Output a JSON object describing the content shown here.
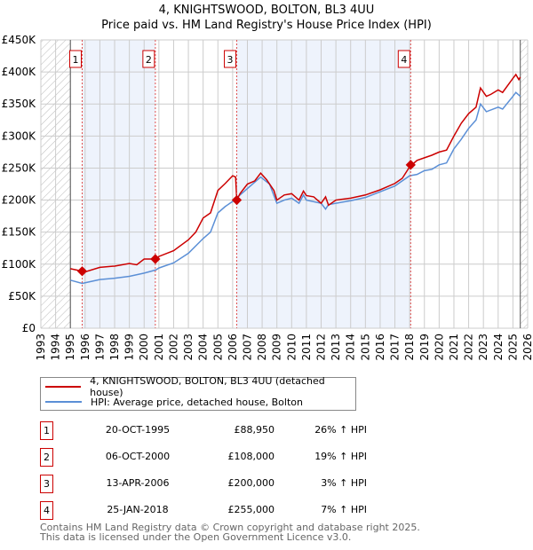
{
  "chart_data": {
    "type": "line",
    "title": "4, KNIGHTSWOOD, BOLTON, BL3 4UU",
    "subtitle": "Price paid vs. HM Land Registry's House Price Index (HPI)",
    "xlim": [
      1993,
      2026
    ],
    "ylim": [
      0,
      450000
    ],
    "x_ticks": [
      "1993",
      "1994",
      "1995",
      "1996",
      "1997",
      "1998",
      "1999",
      "2000",
      "2001",
      "2002",
      "2003",
      "2004",
      "2005",
      "2006",
      "2007",
      "2008",
      "2009",
      "2010",
      "2011",
      "2012",
      "2013",
      "2014",
      "2015",
      "2016",
      "2017",
      "2018",
      "2019",
      "2020",
      "2021",
      "2022",
      "2023",
      "2024",
      "2025",
      "2026"
    ],
    "y_ticks": [
      {
        "v": 0,
        "label": "£0"
      },
      {
        "v": 50000,
        "label": "£50K"
      },
      {
        "v": 100000,
        "label": "£100K"
      },
      {
        "v": 150000,
        "label": "£150K"
      },
      {
        "v": 200000,
        "label": "£200K"
      },
      {
        "v": 250000,
        "label": "£250K"
      },
      {
        "v": 300000,
        "label": "£300K"
      },
      {
        "v": 350000,
        "label": "£350K"
      },
      {
        "v": 400000,
        "label": "£400K"
      },
      {
        "v": 450000,
        "label": "£450K"
      }
    ],
    "grid": true,
    "data_range": [
      1995,
      2025.5
    ],
    "series": [
      {
        "name": "4, KNIGHTSWOOD, BOLTON, BL3 4UU (detached house)",
        "color": "#cc0000",
        "x": [
          1995,
          1995.8,
          1996,
          1997,
          1998,
          1999,
          1999.5,
          2000,
          2000.8,
          2001,
          2002,
          2003,
          2003.5,
          2004,
          2004.5,
          2005,
          2005.5,
          2006,
          2006.2,
          2006.28,
          2006.5,
          2007,
          2007.5,
          2007.9,
          2008.3,
          2008.8,
          2009,
          2009.5,
          2010,
          2010.5,
          2010.8,
          2011,
          2011.5,
          2012,
          2012.3,
          2012.5,
          2013,
          2014,
          2015,
          2016,
          2017,
          2017.5,
          2018,
          2018.5,
          2019,
          2019.5,
          2020,
          2020.5,
          2021,
          2021.5,
          2022,
          2022.5,
          2022.8,
          2023.2,
          2023.5,
          2024,
          2024.3,
          2025,
          2025.2,
          2025.4,
          2025.5
        ],
        "y": [
          93,
          89,
          88,
          95,
          97,
          101,
          99,
          108,
          108,
          112,
          121,
          138,
          150,
          172,
          180,
          215,
          226,
          238,
          236,
          200,
          210,
          225,
          230,
          242,
          232,
          215,
          200,
          208,
          210,
          200,
          214,
          207,
          205,
          195,
          205,
          192,
          200,
          203,
          208,
          216,
          226,
          234,
          252,
          262,
          266,
          270,
          275,
          278,
          300,
          320,
          335,
          345,
          375,
          362,
          365,
          372,
          368,
          390,
          396,
          388,
          392
        ]
      },
      {
        "name": "HPI: Average price, detached house, Bolton",
        "color": "#5b8fd6",
        "x": [
          1995,
          1995.8,
          1996,
          1997,
          1998,
          1999,
          2000,
          2000.8,
          2001,
          2002,
          2003,
          2004,
          2004.5,
          2005,
          2005.5,
          2006,
          2006.5,
          2007,
          2007.9,
          2008.5,
          2009,
          2009.5,
          2010,
          2010.5,
          2010.8,
          2011,
          2012,
          2012.3,
          2012.5,
          2013,
          2014,
          2015,
          2016,
          2017,
          2017.5,
          2018,
          2018.5,
          2019,
          2019.5,
          2020,
          2020.5,
          2021,
          2021.5,
          2022,
          2022.5,
          2022.8,
          2023.2,
          2024,
          2024.3,
          2025,
          2025.2,
          2025.5
        ],
        "y": [
          75,
          70,
          71,
          76,
          78,
          81,
          86,
          91,
          94,
          102,
          117,
          140,
          150,
          180,
          190,
          198,
          208,
          218,
          236,
          225,
          195,
          200,
          203,
          195,
          208,
          200,
          195,
          186,
          193,
          195,
          199,
          204,
          213,
          222,
          230,
          238,
          240,
          246,
          248,
          255,
          258,
          280,
          295,
          312,
          325,
          350,
          338,
          345,
          342,
          362,
          368,
          362
        ]
      }
    ],
    "y_units": "thousands GBP",
    "sales": [
      {
        "n": "1",
        "x": 1995.8,
        "y": 88.95,
        "date": "20-OCT-1995",
        "price": "£88,950",
        "hpi": "26% ↑ HPI"
      },
      {
        "n": "2",
        "x": 2000.76,
        "y": 108,
        "date": "06-OCT-2000",
        "price": "£108,000",
        "hpi": "19% ↑ HPI"
      },
      {
        "n": "3",
        "x": 2006.28,
        "y": 200,
        "date": "13-APR-2006",
        "price": "£200,000",
        "hpi": "3% ↑ HPI"
      },
      {
        "n": "4",
        "x": 2018.07,
        "y": 255,
        "date": "25-JAN-2018",
        "price": "£255,000",
        "hpi": "7% ↑ HPI"
      }
    ],
    "legend_placement": "below"
  },
  "footer": {
    "line1": "Contains HM Land Registry data © Crown copyright and database right 2025.",
    "line2": "This data is licensed under the Open Government Licence v3.0."
  }
}
